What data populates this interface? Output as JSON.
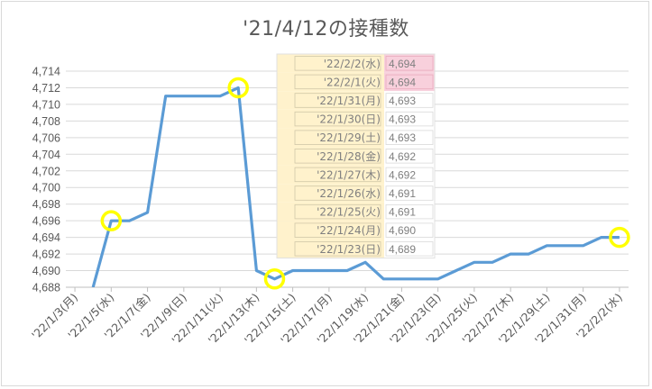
{
  "chart_data": {
    "type": "line",
    "title": "'21/4/12の接種数",
    "xlabel": "",
    "ylabel": "",
    "ylim": [
      4688,
      4714
    ],
    "ytick_step": 2,
    "grid": "horizontal",
    "legend": "none",
    "line_color": "#5b9bd5",
    "highlight_color": "#ffff00",
    "x_tick_labels": [
      "'22/1/3(月)",
      "'22/1/5(水)",
      "'22/1/7(金)",
      "'22/1/9(日)",
      "'22/1/11(火)",
      "'22/1/13(木)",
      "'22/1/15(土)",
      "'22/1/17(月)",
      "'22/1/19(水)",
      "'22/1/21(金)",
      "'22/1/23(日)",
      "'22/1/25(火)",
      "'22/1/27(木)",
      "'22/1/29(土)",
      "'22/1/31(月)",
      "'22/2/2(水)"
    ],
    "series": [
      {
        "x": [
          "'22/1/4",
          "'22/1/5",
          "'22/1/6",
          "'22/1/7",
          "'22/1/8",
          "'22/1/9",
          "'22/1/10",
          "'22/1/11",
          "'22/1/12",
          "'22/1/13",
          "'22/1/14",
          "'22/1/15",
          "'22/1/16",
          "'22/1/17",
          "'22/1/18",
          "'22/1/19",
          "'22/1/20",
          "'22/1/21",
          "'22/1/22",
          "'22/1/23",
          "'22/1/24",
          "'22/1/25",
          "'22/1/26",
          "'22/1/27",
          "'22/1/28",
          "'22/1/29",
          "'22/1/30",
          "'22/1/31",
          "'22/2/1",
          "'22/2/2"
        ],
        "values": [
          4688,
          4696,
          4696,
          4697,
          4711,
          4711,
          4711,
          4711,
          4712,
          4690,
          4689,
          4690,
          4690,
          4690,
          4690,
          4691,
          4689,
          4689,
          4689,
          4689,
          4690,
          4691,
          4691,
          4692,
          4692,
          4693,
          4693,
          4693,
          4694,
          4694
        ]
      }
    ],
    "highlighted_points": [
      "'22/1/5",
      "'22/1/12",
      "'22/1/14",
      "'22/2/2"
    ],
    "table": {
      "date_bg": "#fff2cc",
      "value_bg": "#ffffff",
      "highlight_bg": "#f8d0dc",
      "rows": [
        {
          "date": "'22/2/2(水)",
          "value": "4,694",
          "highlight": true
        },
        {
          "date": "'22/2/1(火)",
          "value": "4,694",
          "highlight": true
        },
        {
          "date": "'22/1/31(月)",
          "value": "4,693",
          "highlight": false
        },
        {
          "date": "'22/1/30(日)",
          "value": "4,693",
          "highlight": false
        },
        {
          "date": "'22/1/29(土)",
          "value": "4,693",
          "highlight": false
        },
        {
          "date": "'22/1/28(金)",
          "value": "4,692",
          "highlight": false
        },
        {
          "date": "'22/1/27(木)",
          "value": "4,692",
          "highlight": false
        },
        {
          "date": "'22/1/26(水)",
          "value": "4,691",
          "highlight": false
        },
        {
          "date": "'22/1/25(火)",
          "value": "4,691",
          "highlight": false
        },
        {
          "date": "'22/1/24(月)",
          "value": "4,690",
          "highlight": false
        },
        {
          "date": "'22/1/23(日)",
          "value": "4,689",
          "highlight": false
        }
      ]
    }
  }
}
